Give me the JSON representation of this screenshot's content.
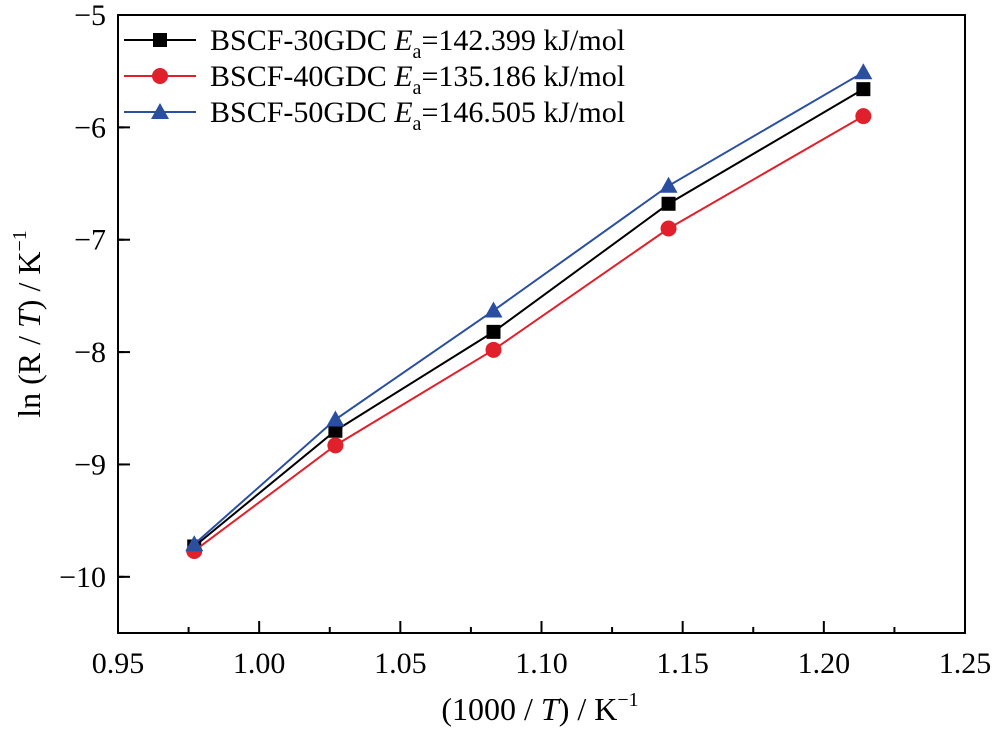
{
  "chart_data": {
    "type": "line",
    "xlabel": {
      "pre": "(1000 / ",
      "var": "T",
      "post": ") / K",
      "sup": "−1"
    },
    "ylabel": {
      "pre": "ln (R / ",
      "var": "T",
      "post": ") / K",
      "sup": "−1"
    },
    "xlim": [
      0.95,
      1.25
    ],
    "ylim": [
      -10.5,
      -5
    ],
    "xticks": [
      0.95,
      1.0,
      1.05,
      1.1,
      1.15,
      1.2,
      1.25
    ],
    "xtick_labels": [
      "0.95",
      "1.00",
      "1.05",
      "1.10",
      "1.15",
      "1.20",
      "1.25"
    ],
    "yticks": [
      -10,
      -9,
      -8,
      -7,
      -6,
      -5
    ],
    "ytick_labels": [
      "−10",
      "−9",
      "−8",
      "−7",
      "−6",
      "−5"
    ],
    "grid": false,
    "legend_position": "top-left",
    "x": [
      0.977,
      1.027,
      1.083,
      1.145,
      1.214
    ],
    "series": [
      {
        "name": "BSCF-30GDC",
        "ea_label": "E",
        "ea_sub": "a",
        "ea_value": "=142.399 kJ/mol",
        "color": "#000000",
        "marker": "square",
        "values": [
          -9.73,
          -8.7,
          -7.82,
          -6.68,
          -5.66
        ]
      },
      {
        "name": "BSCF-40GDC",
        "ea_label": "E",
        "ea_sub": "a",
        "ea_value": "=135.186 kJ/mol",
        "color": "#e0202a",
        "marker": "circle",
        "values": [
          -9.77,
          -8.83,
          -7.98,
          -6.9,
          -5.9
        ]
      },
      {
        "name": "BSCF-50GDC",
        "ea_label": "E",
        "ea_sub": "a",
        "ea_value": "=146.505 kJ/mol",
        "color": "#2a4fa0",
        "marker": "triangle",
        "values": [
          -9.71,
          -8.6,
          -7.63,
          -6.52,
          -5.51
        ]
      }
    ]
  }
}
